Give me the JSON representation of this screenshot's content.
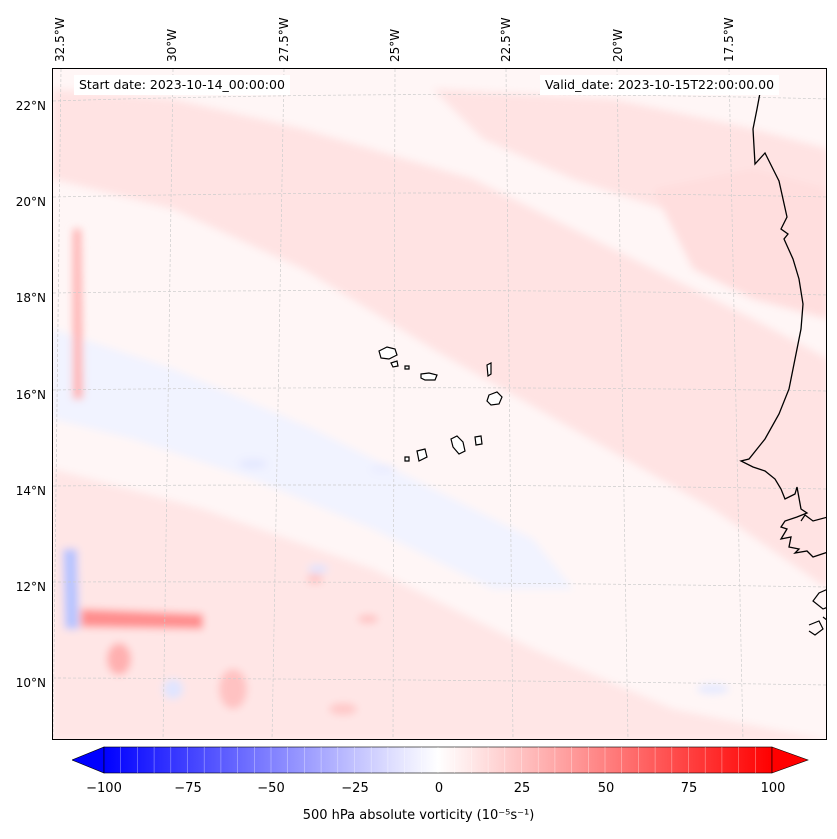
{
  "map": {
    "start_date": "Start date: 2023-10-14_00:00:00",
    "valid_date": "Valid_date: 2023-10-15T22:00:00.00",
    "lon_labels": [
      "32.5°W",
      "30°W",
      "27.5°W",
      "25°W",
      "22.5°W",
      "20°W",
      "17.5°W"
    ],
    "lat_labels": [
      "22°N",
      "20°N",
      "18°N",
      "16°N",
      "14°N",
      "12°N",
      "10°N"
    ],
    "region": "Cabo Verde / West Africa"
  },
  "colorbar": {
    "min": -100,
    "max": 100,
    "ticks": [
      "−100",
      "−75",
      "−50",
      "−25",
      "0",
      "25",
      "50",
      "75",
      "100"
    ],
    "label": "500 hPa absolute vorticity (10⁻⁵s⁻¹)",
    "colormap": "bwr",
    "negative_color": "#0000ff",
    "positive_color": "#ff0000"
  }
}
